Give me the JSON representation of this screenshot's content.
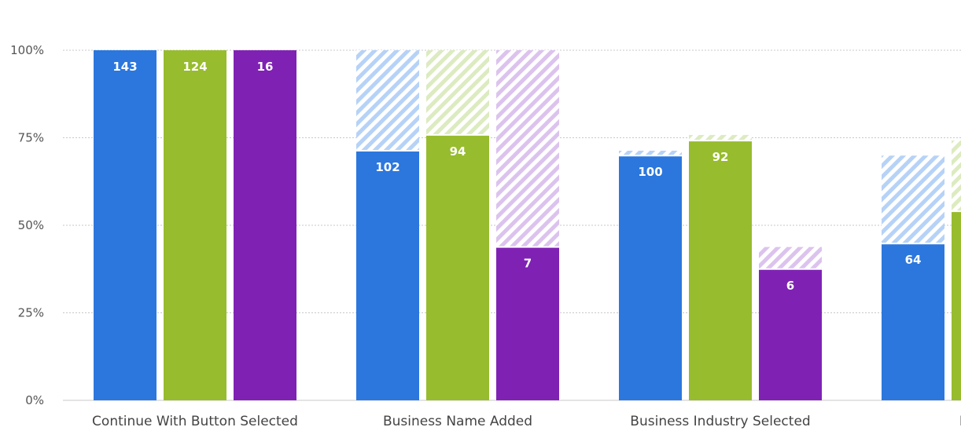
{
  "chart_data": {
    "type": "bar",
    "stacked": false,
    "yaxis": {
      "min": 0,
      "max": 100,
      "unit": "%",
      "ticks": [
        "0%",
        "25%",
        "50%",
        "75%",
        "100%"
      ]
    },
    "grid": "horizontal dotted",
    "categories": [
      "Continue With Button Selected",
      "Business Name Added",
      "Business Industry Selected",
      "Bill Cre"
    ],
    "series": [
      {
        "color": "#2b77de",
        "hatch_color": "#b6d2f7",
        "values": [
          100,
          71.3,
          69.9,
          44.8
        ],
        "dropoff_top": [
          100,
          100,
          71.3,
          69.9
        ],
        "labels": [
          "143",
          "102",
          "100",
          "64"
        ]
      },
      {
        "color": "#97bc2e",
        "hatch_color": "#dcebc0",
        "values": [
          100,
          75.8,
          74.2,
          54.0
        ],
        "dropoff_top": [
          100,
          100,
          75.8,
          74.2
        ],
        "labels": [
          "124",
          "94",
          "92",
          ""
        ]
      },
      {
        "color": "#7f22b4",
        "hatch_color": "#dcc3ee",
        "values": [
          100,
          43.8,
          37.5,
          null
        ],
        "dropoff_top": [
          100,
          100,
          43.8,
          null
        ],
        "labels": [
          "16",
          "7",
          "6",
          ""
        ]
      }
    ]
  }
}
